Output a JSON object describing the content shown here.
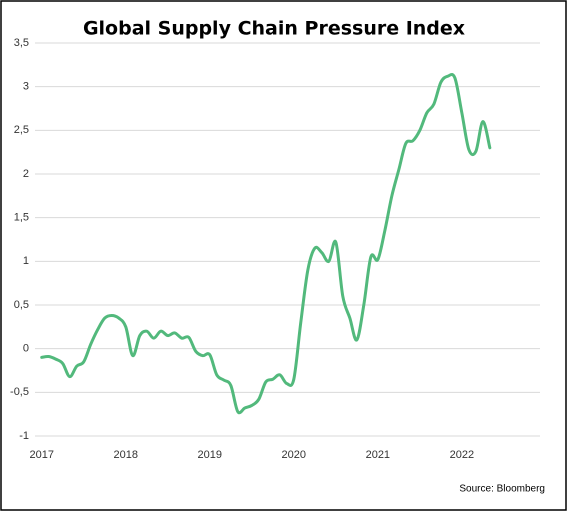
{
  "chart_data": {
    "type": "line",
    "title": "Global Supply Chain Pressure Index",
    "annotations": [
      "Source: Bloomberg"
    ],
    "x": [
      2017,
      2017.083,
      2017.167,
      2017.25,
      2017.333,
      2017.417,
      2017.5,
      2017.583,
      2017.667,
      2017.75,
      2017.833,
      2017.917,
      2018,
      2018.083,
      2018.167,
      2018.25,
      2018.333,
      2018.417,
      2018.5,
      2018.583,
      2018.667,
      2018.75,
      2018.833,
      2018.917,
      2019,
      2019.083,
      2019.167,
      2019.25,
      2019.333,
      2019.417,
      2019.5,
      2019.583,
      2019.667,
      2019.75,
      2019.833,
      2019.917,
      2020,
      2020.083,
      2020.167,
      2020.25,
      2020.333,
      2020.417,
      2020.5,
      2020.583,
      2020.667,
      2020.75,
      2020.833,
      2020.917,
      2021,
      2021.083,
      2021.167,
      2021.25,
      2021.333,
      2021.417,
      2021.5,
      2021.583,
      2021.667,
      2021.75,
      2021.833,
      2021.917,
      2022,
      2022.083,
      2022.167,
      2022.25,
      2022.333
    ],
    "series": [
      {
        "name": "Global Supply Chain Pressure Index",
        "color": "#52b97c",
        "values": [
          -0.1,
          -0.09,
          -0.12,
          -0.17,
          -0.32,
          -0.2,
          -0.15,
          0.05,
          0.22,
          0.35,
          0.38,
          0.35,
          0.25,
          -0.08,
          0.15,
          0.2,
          0.12,
          0.2,
          0.15,
          0.18,
          0.12,
          0.13,
          -0.03,
          -0.08,
          -0.07,
          -0.3,
          -0.36,
          -0.42,
          -0.72,
          -0.68,
          -0.65,
          -0.58,
          -0.38,
          -0.35,
          -0.3,
          -0.4,
          -0.35,
          0.3,
          0.9,
          1.15,
          1.1,
          1.0,
          1.22,
          0.6,
          0.35,
          0.1,
          0.5,
          1.05,
          1.02,
          1.35,
          1.75,
          2.05,
          2.35,
          2.38,
          2.5,
          2.7,
          2.8,
          3.05,
          3.12,
          3.1,
          2.7,
          2.28,
          2.26,
          2.6,
          2.3
        ]
      }
    ],
    "xlim": [
      2016.92,
      2022.93
    ],
    "xticks": [
      2017,
      2018,
      2019,
      2020,
      2021,
      2022
    ],
    "ylim": [
      -1,
      3.5
    ],
    "yticks": [
      -1,
      {
        "value": -0.5,
        "label": "-0,5"
      },
      0,
      {
        "value": 0.5,
        "label": "0,5"
      },
      1,
      {
        "value": 1.5,
        "label": "1,5"
      },
      2,
      {
        "value": 2.5,
        "label": "2,5"
      },
      3,
      {
        "value": 3.5,
        "label": "3,5"
      }
    ],
    "grid": true
  }
}
